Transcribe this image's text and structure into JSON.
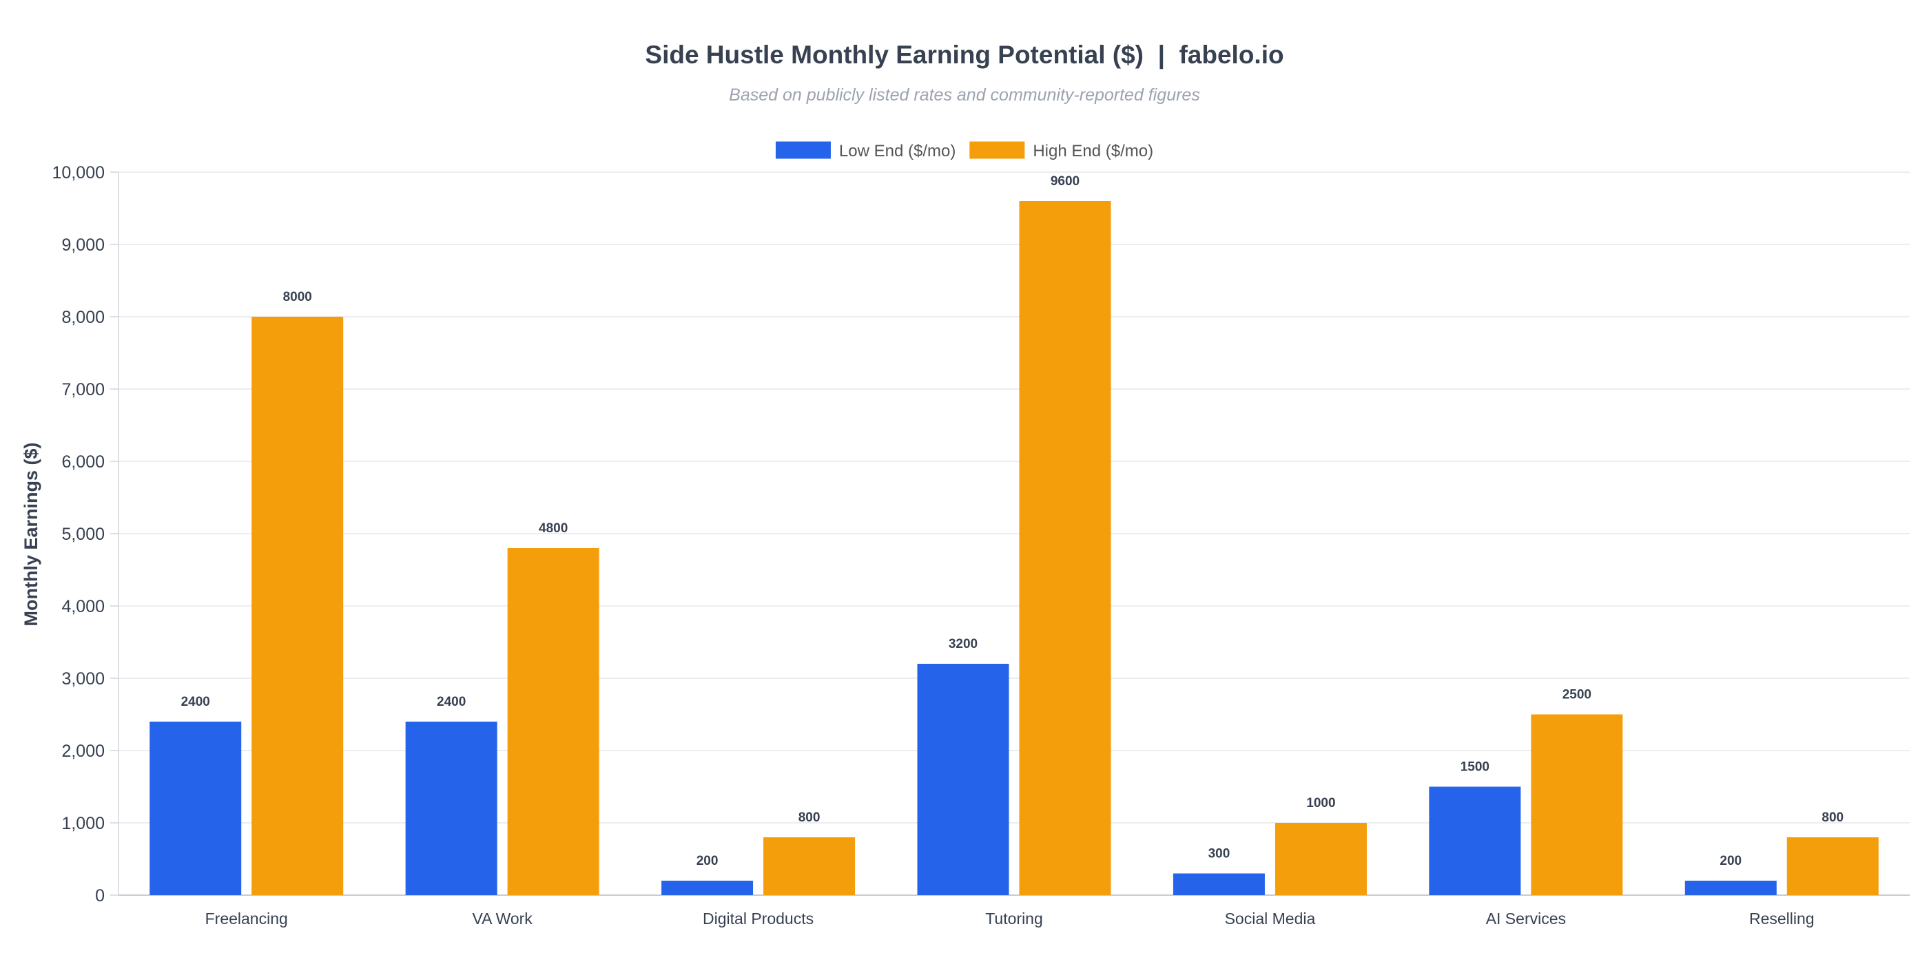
{
  "chart_data": {
    "type": "bar",
    "title": "Side Hustle Monthly Earning Potential ($)  |  fabelo.io",
    "subtitle": "Based on publicly listed rates and community-reported figures",
    "ylabel": "Monthly Earnings ($)",
    "xlabel": "",
    "ylim": [
      0,
      10000
    ],
    "yticks": [
      0,
      1000,
      2000,
      3000,
      4000,
      5000,
      6000,
      7000,
      8000,
      9000,
      10000
    ],
    "ytick_labels": [
      "0",
      "1,000",
      "2,000",
      "3,000",
      "4,000",
      "5,000",
      "6,000",
      "7,000",
      "8,000",
      "9,000",
      "10,000"
    ],
    "grid": true,
    "legend_position": "top-center",
    "categories": [
      "Freelancing",
      "VA Work",
      "Digital Products",
      "Tutoring",
      "Social Media",
      "AI Services",
      "Reselling"
    ],
    "series": [
      {
        "name": "Low End ($/mo)",
        "color": "#2563eb",
        "values": [
          2400,
          2400,
          200,
          3200,
          300,
          1500,
          200
        ]
      },
      {
        "name": "High End ($/mo)",
        "color": "#f59e0b",
        "values": [
          8000,
          4800,
          800,
          9600,
          1000,
          2500,
          800
        ]
      }
    ]
  }
}
